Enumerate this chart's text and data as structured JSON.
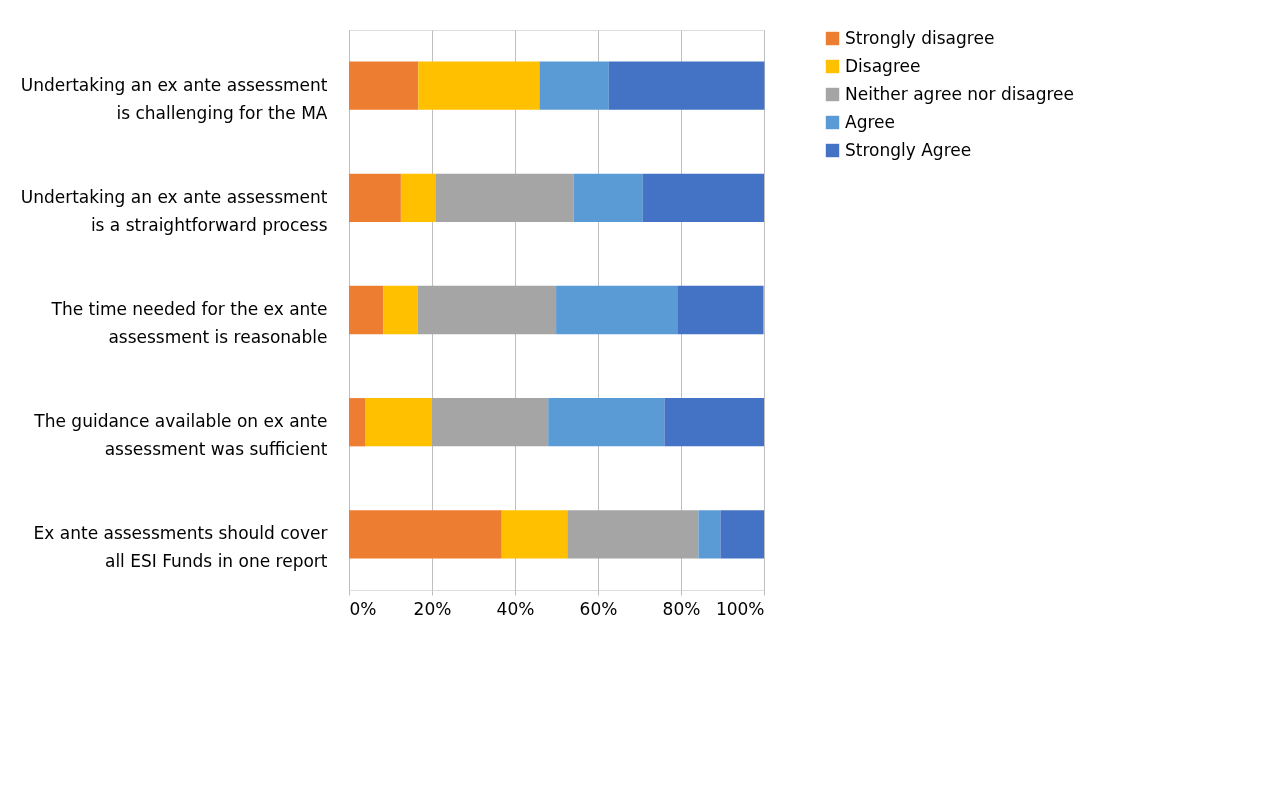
{
  "chart_data": {
    "type": "bar",
    "orientation": "horizontal",
    "stacked": true,
    "categories": [
      "Undertaking an ex ante assessment is challenging for the MA",
      "Undertaking an ex ante assessment is a straightforward process",
      "The time needed for the ex ante assessment is reasonable",
      "The guidance available on ex ante assessment was sufficient",
      "Ex ante assessments should cover all ESI Funds in one report"
    ],
    "series": [
      {
        "name": "Strongly disagree",
        "color": "#ed7d31",
        "values": [
          16.7,
          12.5,
          8.3,
          4,
          36.8
        ]
      },
      {
        "name": "Disagree",
        "color": "#ffc000",
        "values": [
          29.2,
          8.3,
          8.3,
          16,
          15.8
        ]
      },
      {
        "name": "Neither agree nor disagree",
        "color": "#a5a5a5",
        "values": [
          0,
          33.3,
          33.3,
          28,
          31.6
        ]
      },
      {
        "name": "Agree",
        "color": "#5b9bd5",
        "values": [
          16.7,
          16.7,
          29.2,
          28,
          5.3
        ]
      },
      {
        "name": "Strongly Agree",
        "color": "#4472c4",
        "values": [
          37.5,
          29.2,
          20.8,
          24,
          10.5
        ]
      }
    ],
    "xlim": [
      0,
      100
    ],
    "xticks": [
      {
        "value": 0,
        "label": "0%"
      },
      {
        "value": 20,
        "label": "20%"
      },
      {
        "value": 40,
        "label": "40%"
      },
      {
        "value": 60,
        "label": "60%"
      },
      {
        "value": 80,
        "label": "80%"
      },
      {
        "value": 100,
        "label": "100%"
      }
    ],
    "grid": "x",
    "legend": "right"
  }
}
